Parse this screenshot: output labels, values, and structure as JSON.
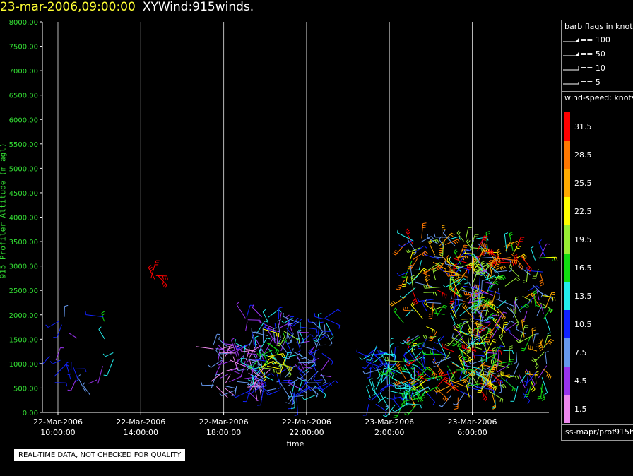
{
  "title": {
    "date": "23-mar-2006,09:00:00",
    "name": "XYWind:915winds."
  },
  "notice": "REAL-TIME DATA, NOT CHECKED FOR QUALITY",
  "legend": {
    "flags_title": "barb flags in knots",
    "flags": [
      {
        "label": "== 100",
        "type": "pennant"
      },
      {
        "label": "== 50",
        "type": "pennant"
      },
      {
        "label": "== 10",
        "type": "barb"
      },
      {
        "label": "== 5",
        "type": "halfbarb"
      }
    ],
    "speed_title": "wind-speed: knots",
    "source": "iss-mapr/prof915h"
  },
  "chart_data": {
    "type": "scatter",
    "title": "23-mar-2006,09:00:00 XYWind:915winds.",
    "xlabel": "time",
    "ylabel": "915 Profiler Altitude (m agl)",
    "ylim": [
      0,
      8000
    ],
    "xlim_hours": [
      9.25,
      33.7
    ],
    "yticks": [
      "0.00",
      "500.00",
      "1000.00",
      "1500.00",
      "2000.00",
      "2500.00",
      "3000.00",
      "3500.00",
      "4000.00",
      "4500.00",
      "5000.00",
      "5500.00",
      "6000.00",
      "6500.00",
      "7000.00",
      "7500.00",
      "8000.00"
    ],
    "xticks": [
      {
        "date": "22-Mar-2006",
        "time": "10:00:00",
        "hour": 10
      },
      {
        "date": "22-Mar-2006",
        "time": "14:00:00",
        "hour": 14
      },
      {
        "date": "22-Mar-2006",
        "time": "18:00:00",
        "hour": 18
      },
      {
        "date": "22-Mar-2006",
        "time": "22:00:00",
        "hour": 22
      },
      {
        "date": "23-Mar-2006",
        "time": "2:00:00",
        "hour": 26
      },
      {
        "date": "23-Mar-2006",
        "time": "6:00:00",
        "hour": 30
      }
    ],
    "grid": "vertical",
    "colorbar": [
      {
        "label": "1.5",
        "color": "#ee88ee"
      },
      {
        "label": "4.5",
        "color": "#9933ee"
      },
      {
        "label": "7.5",
        "color": "#6699ee"
      },
      {
        "label": "10.5",
        "color": "#1122ff"
      },
      {
        "label": "13.5",
        "color": "#22eeee"
      },
      {
        "label": "16.5",
        "color": "#11dd11"
      },
      {
        "label": "19.5",
        "color": "#99ee33"
      },
      {
        "label": "22.5",
        "color": "#ffff00"
      },
      {
        "label": "25.5",
        "color": "#ffaa00"
      },
      {
        "label": "28.5",
        "color": "#ff7700"
      },
      {
        "label": "31.5",
        "color": "#ff0000"
      }
    ],
    "clusters": [
      {
        "h0": 9.4,
        "h1": 11.2,
        "z0": 400,
        "z1": 2000,
        "n": 14,
        "s0": 4,
        "s1": 12
      },
      {
        "h0": 11.7,
        "h1": 12.7,
        "z0": 1100,
        "z1": 2000,
        "n": 3,
        "s0": 9,
        "s1": 20
      },
      {
        "h0": 10.4,
        "h1": 12.3,
        "z0": 350,
        "z1": 700,
        "n": 4,
        "s0": 3,
        "s1": 10
      },
      {
        "h0": 12.6,
        "h1": 12.9,
        "z0": 900,
        "z1": 1300,
        "n": 2,
        "s0": 12,
        "s1": 15
      },
      {
        "h0": 14.2,
        "h1": 15.1,
        "z0": 2500,
        "z1": 2850,
        "n": 4,
        "s0": 30,
        "s1": 33
      },
      {
        "h0": 17.4,
        "h1": 20.0,
        "z0": 400,
        "z1": 1400,
        "n": 70,
        "s0": 0,
        "s1": 8
      },
      {
        "h0": 19.0,
        "h1": 23.0,
        "z0": 300,
        "z1": 2000,
        "n": 150,
        "s0": 4,
        "s1": 14
      },
      {
        "h0": 19.6,
        "h1": 21.0,
        "z0": 900,
        "z1": 1800,
        "n": 20,
        "s0": 12,
        "s1": 24
      },
      {
        "h0": 25.0,
        "h1": 26.3,
        "z0": 150,
        "z1": 1400,
        "n": 50,
        "s0": 8,
        "s1": 15
      },
      {
        "h0": 26.3,
        "h1": 27.8,
        "z0": 100,
        "z1": 1100,
        "n": 55,
        "s0": 10,
        "s1": 18
      },
      {
        "h0": 26.7,
        "h1": 31.0,
        "z0": 300,
        "z1": 3600,
        "n": 240,
        "s0": 6,
        "s1": 32
      },
      {
        "h0": 29.2,
        "h1": 33.6,
        "z0": 400,
        "z1": 3400,
        "n": 220,
        "s0": 3,
        "s1": 28
      },
      {
        "h0": 29.0,
        "h1": 32.6,
        "z0": 3000,
        "z1": 3400,
        "n": 14,
        "s0": 26,
        "s1": 33
      }
    ]
  }
}
